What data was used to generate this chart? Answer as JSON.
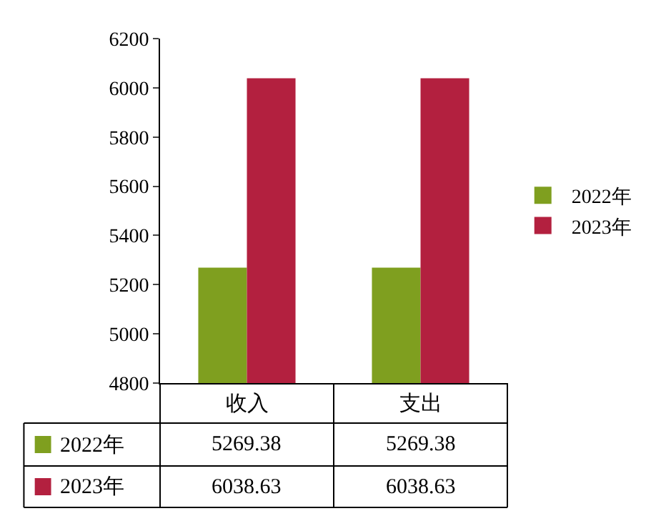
{
  "chart_data": {
    "type": "bar",
    "categories": [
      "收入",
      "支出"
    ],
    "series": [
      {
        "name": "2022年",
        "color": "#7f9f1f",
        "values": [
          5269.38,
          5269.38
        ]
      },
      {
        "name": "2023年",
        "color": "#b3203f",
        "values": [
          6038.63,
          6038.63
        ]
      }
    ],
    "ylim": [
      4800,
      6200
    ],
    "yticks": [
      4800,
      5000,
      5200,
      5400,
      5600,
      5800,
      6000,
      6200
    ],
    "grid": false,
    "legend": "right",
    "data_labels": true
  }
}
